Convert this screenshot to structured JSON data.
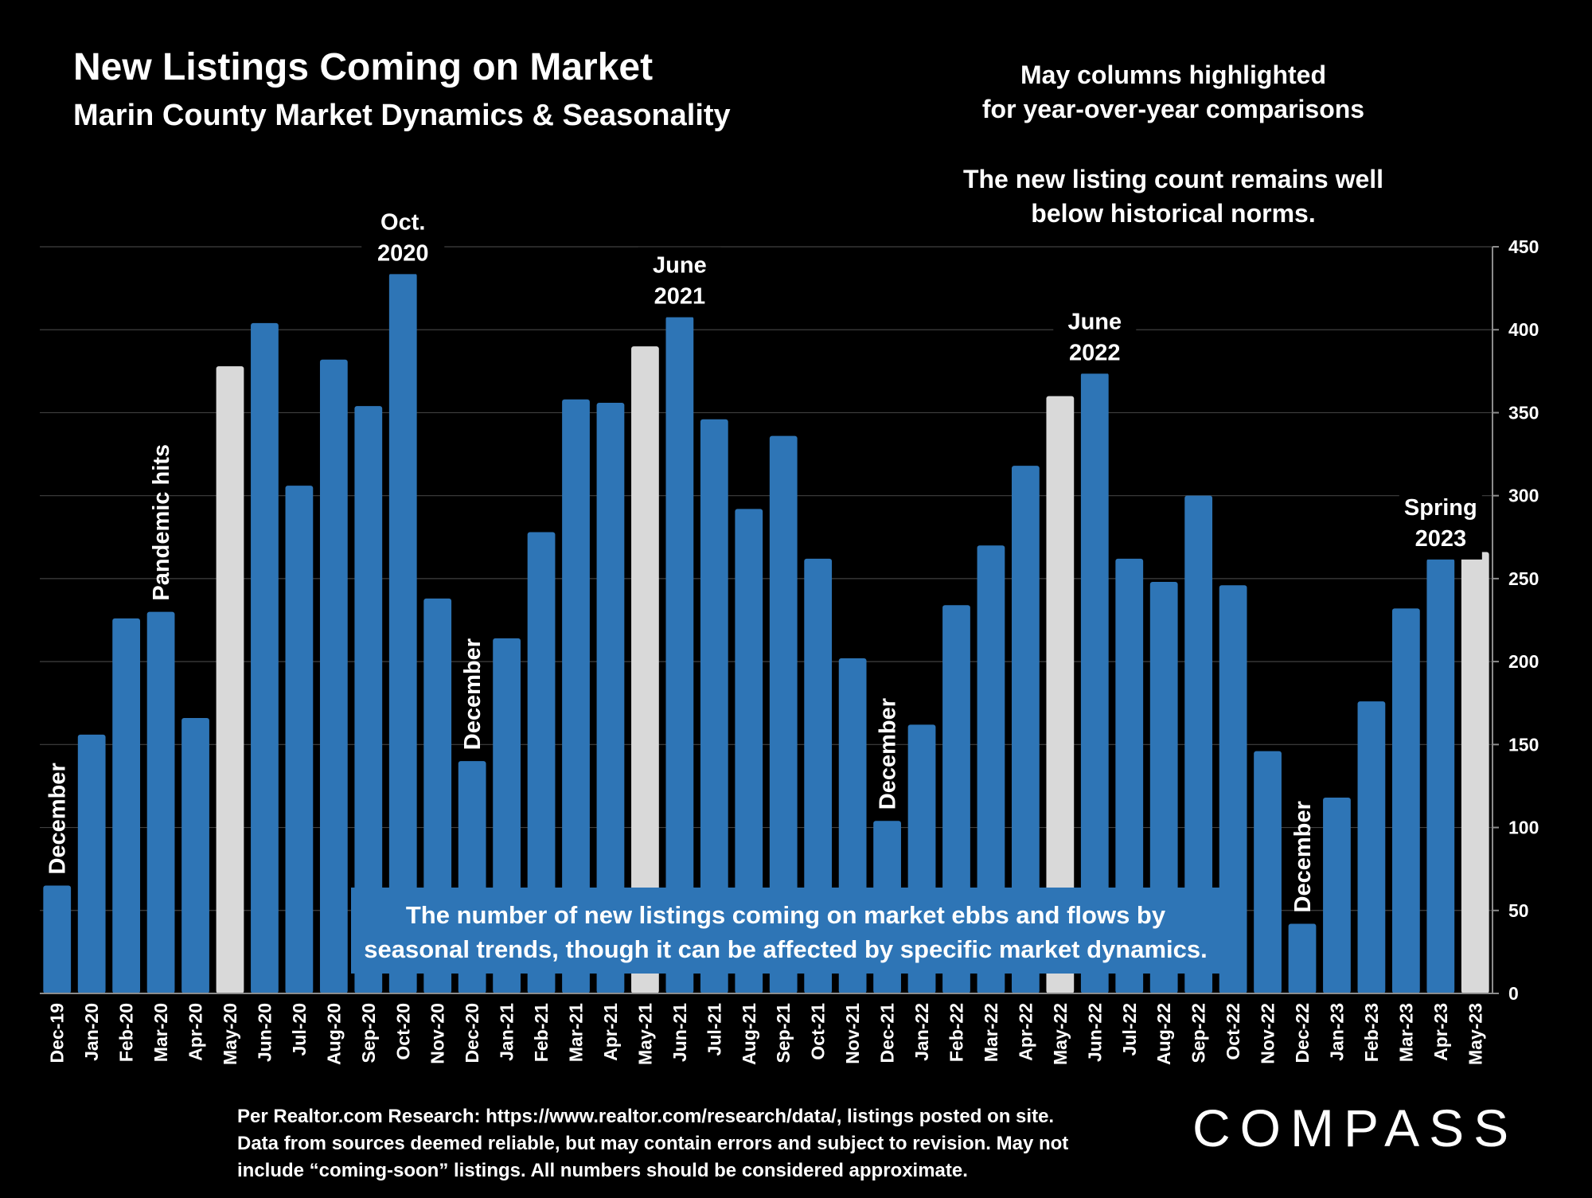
{
  "header": {
    "title": "New Listings Coming on Market",
    "subtitle": "Marin County Market Dynamics & Seasonality"
  },
  "notes": {
    "highlight_note": [
      "May columns highlighted",
      "for year-over-year comparisons"
    ],
    "trend_note": [
      "The new listing count remains well",
      "below historical norms."
    ]
  },
  "callout": {
    "lines": [
      "The number of new listings coming on market ebbs and flows by",
      "seasonal trends, though it can be affected by specific market dynamics."
    ]
  },
  "footer": {
    "lines": [
      "Per Realtor.com Research:  https://www.realtor.com/research/data/, listings posted on site.",
      "Data from sources deemed reliable, but may contain errors and subject to revision. May not",
      "include “coming-soon” listings. All numbers should be considered approximate."
    ]
  },
  "logo": {
    "text": "COMPASS"
  },
  "colors": {
    "background": "#000000",
    "bar": "#2E75B6",
    "highlight_bar": "#D9D9D9",
    "grid": "#404040",
    "text": "#FFFFFF"
  },
  "chart_data": {
    "type": "bar",
    "title": "New Listings Coming on Market",
    "subtitle": "Marin County Market Dynamics & Seasonality",
    "categories": [
      "Dec-19",
      "Jan-20",
      "Feb-20",
      "Mar-20",
      "Apr-20",
      "May-20",
      "Jun-20",
      "Jul-20",
      "Aug-20",
      "Sep-20",
      "Oct-20",
      "Nov-20",
      "Dec-20",
      "Jan-21",
      "Feb-21",
      "Mar-21",
      "Apr-21",
      "May-21",
      "Jun-21",
      "Jul-21",
      "Aug-21",
      "Sep-21",
      "Oct-21",
      "Nov-21",
      "Dec-21",
      "Jan-22",
      "Feb-22",
      "Mar-22",
      "Apr-22",
      "May-22",
      "Jun-22",
      "Jul-22",
      "Aug-22",
      "Sep-22",
      "Oct-22",
      "Nov-22",
      "Dec-22",
      "Jan-23",
      "Feb-23",
      "Mar-23",
      "Apr-23",
      "May-23"
    ],
    "values": [
      65,
      156,
      226,
      230,
      166,
      378,
      404,
      306,
      382,
      354,
      434,
      238,
      140,
      214,
      278,
      358,
      356,
      390,
      408,
      346,
      292,
      336,
      262,
      202,
      104,
      162,
      234,
      270,
      318,
      360,
      374,
      262,
      248,
      300,
      246,
      146,
      42,
      118,
      176,
      232,
      262,
      266
    ],
    "highlighted": [
      "May-20",
      "May-21",
      "May-22",
      "May-23"
    ],
    "ylim": [
      0,
      450
    ],
    "yticks": [
      0,
      50,
      100,
      150,
      200,
      250,
      300,
      350,
      400,
      450
    ],
    "y_axis_side": "right",
    "grid": true,
    "legend": "none",
    "annotations": [
      {
        "category": "Dec-19",
        "text": [
          "December"
        ],
        "orientation": "vertical"
      },
      {
        "category": "Mar-20",
        "text": [
          "Pandemic hits"
        ],
        "orientation": "vertical"
      },
      {
        "category": "Oct-20",
        "text": [
          "Oct.",
          "2020"
        ],
        "orientation": "horizontal"
      },
      {
        "category": "Dec-20",
        "text": [
          "December"
        ],
        "orientation": "vertical"
      },
      {
        "category": "Jun-21",
        "text": [
          "June",
          "2021"
        ],
        "orientation": "horizontal"
      },
      {
        "category": "Dec-21",
        "text": [
          "December"
        ],
        "orientation": "vertical"
      },
      {
        "category": "Jun-22",
        "text": [
          "June",
          "2022"
        ],
        "orientation": "horizontal"
      },
      {
        "category": "Dec-22",
        "text": [
          "December"
        ],
        "orientation": "vertical"
      },
      {
        "category": "Apr-23",
        "text": [
          "Spring",
          "2023"
        ],
        "orientation": "horizontal"
      }
    ]
  }
}
